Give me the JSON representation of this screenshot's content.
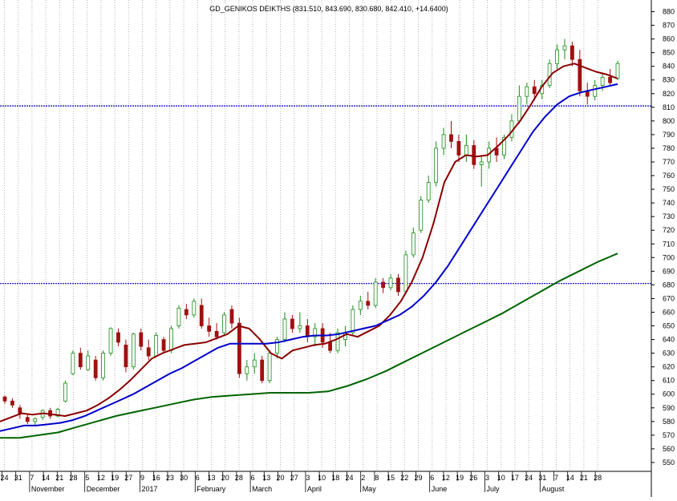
{
  "chart_data": {
    "type": "candlestick",
    "title": "GD_GENIKOS DEIKTHS (831.510, 843.690, 830.680, 842.410, +14.6400)",
    "ylim": [
      540,
      885
    ],
    "y_ticks": [
      550,
      560,
      570,
      580,
      590,
      600,
      610,
      620,
      630,
      640,
      650,
      660,
      670,
      680,
      690,
      700,
      710,
      720,
      730,
      740,
      750,
      760,
      770,
      780,
      790,
      800,
      810,
      820,
      830,
      840,
      850,
      860,
      870,
      880
    ],
    "y_tick_labels": [
      "550",
      "560",
      "570",
      "580",
      "590",
      "600",
      "610",
      "620",
      "630",
      "640",
      "650",
      "660",
      "670",
      "680",
      "690",
      "700",
      "710",
      "720",
      "730",
      "740",
      "750",
      "760",
      "770",
      "780",
      "790",
      "800",
      "810",
      "820",
      "830",
      "840",
      "850",
      "860",
      "870",
      "880"
    ],
    "x_tick_labels": [
      "24",
      "31",
      "7",
      "14",
      "21",
      "28",
      "5",
      "12",
      "19",
      "27",
      "9",
      "16",
      "23",
      "30",
      "6",
      "13",
      "20",
      "28",
      "6",
      "13",
      "20",
      "27",
      "3",
      "10",
      "18",
      "24",
      "2",
      "8",
      "15",
      "22",
      "29",
      "6",
      "12",
      "19",
      "26",
      "3",
      "10",
      "17",
      "24",
      "31",
      "7",
      "14",
      "21",
      "28"
    ],
    "month_labels": [
      "November",
      "December",
      "2017",
      "February",
      "March",
      "April",
      "May",
      "June",
      "July",
      "August"
    ],
    "month_tick_index": [
      2,
      6,
      10,
      14,
      18,
      22,
      26,
      31,
      35,
      39
    ],
    "horizontal_lines": [
      811,
      681
    ],
    "series": [
      {
        "role": "short-ma",
        "color": "#8b0000",
        "values": [
          580,
          583,
          586,
          585,
          586,
          585,
          584,
          586,
          588,
          592,
          597,
          603,
          610,
          618,
          626,
          630,
          633,
          636,
          637,
          638,
          641,
          644,
          650,
          648,
          640,
          630,
          626,
          632,
          634,
          636,
          637,
          640,
          644,
          642,
          646,
          650,
          658,
          668,
          682,
          700,
          725,
          755,
          770,
          775,
          774,
          775,
          782,
          790,
          800,
          812,
          825,
          835,
          840,
          842,
          839,
          836,
          834,
          831
        ]
      },
      {
        "role": "mid-ma",
        "color": "#0000cd",
        "values": [
          573,
          575,
          577,
          577,
          578,
          579,
          581,
          584,
          588,
          592,
          596,
          600,
          605,
          610,
          615,
          619,
          624,
          629,
          634,
          637,
          637,
          637,
          637,
          638,
          640,
          642,
          643,
          643,
          644,
          646,
          648,
          650,
          654,
          658,
          664,
          672,
          682,
          694,
          708,
          722,
          736,
          750,
          764,
          778,
          792,
          803,
          812,
          818,
          821,
          823,
          825,
          827
        ]
      },
      {
        "role": "long-ma",
        "color": "#006400",
        "values": [
          568,
          568,
          570,
          572,
          576,
          580,
          584,
          587,
          590,
          593,
          596,
          598,
          599,
          600,
          601,
          601,
          601,
          602,
          606,
          611,
          617,
          624,
          631,
          638,
          645,
          652,
          659,
          667,
          675,
          683,
          690,
          697,
          703
        ]
      }
    ],
    "ohlc": [
      [
        598,
        599,
        593,
        595
      ],
      [
        595,
        597,
        590,
        592
      ],
      [
        590,
        592,
        582,
        586
      ],
      [
        583,
        586,
        578,
        580
      ],
      [
        580,
        583,
        577,
        582
      ],
      [
        583,
        589,
        581,
        588
      ],
      [
        588,
        590,
        582,
        584
      ],
      [
        584,
        590,
        583,
        589
      ],
      [
        595,
        610,
        594,
        608
      ],
      [
        615,
        632,
        614,
        630
      ],
      [
        630,
        634,
        618,
        620
      ],
      [
        618,
        632,
        617,
        628
      ],
      [
        625,
        628,
        610,
        612
      ],
      [
        612,
        632,
        610,
        630
      ],
      [
        630,
        649,
        628,
        648
      ],
      [
        645,
        648,
        635,
        638
      ],
      [
        636,
        640,
        616,
        620
      ],
      [
        620,
        645,
        618,
        644
      ],
      [
        645,
        648,
        632,
        635
      ],
      [
        634,
        640,
        625,
        628
      ],
      [
        628,
        645,
        627,
        643
      ],
      [
        640,
        642,
        630,
        632
      ],
      [
        632,
        650,
        630,
        648
      ],
      [
        650,
        665,
        648,
        663
      ],
      [
        662,
        666,
        655,
        658
      ],
      [
        658,
        670,
        656,
        668
      ],
      [
        665,
        670,
        648,
        650
      ],
      [
        650,
        656,
        642,
        646
      ],
      [
        646,
        652,
        640,
        642
      ],
      [
        645,
        660,
        643,
        658
      ],
      [
        662,
        665,
        648,
        652
      ],
      [
        652,
        656,
        612,
        615
      ],
      [
        615,
        625,
        610,
        620
      ],
      [
        620,
        630,
        615,
        625
      ],
      [
        625,
        628,
        608,
        610
      ],
      [
        610,
        632,
        608,
        630
      ],
      [
        630,
        642,
        626,
        640
      ],
      [
        640,
        660,
        638,
        655
      ],
      [
        655,
        658,
        645,
        648
      ],
      [
        648,
        660,
        645,
        650
      ],
      [
        650,
        655,
        638,
        642
      ],
      [
        642,
        652,
        635,
        648
      ],
      [
        648,
        652,
        634,
        638
      ],
      [
        638,
        645,
        630,
        632
      ],
      [
        632,
        648,
        630,
        645
      ],
      [
        640,
        650,
        635,
        645
      ],
      [
        645,
        665,
        643,
        662
      ],
      [
        662,
        672,
        658,
        668
      ],
      [
        668,
        675,
        662,
        665
      ],
      [
        665,
        685,
        663,
        682
      ],
      [
        682,
        685,
        674,
        678
      ],
      [
        678,
        688,
        676,
        685
      ],
      [
        685,
        688,
        672,
        675
      ],
      [
        675,
        705,
        673,
        702
      ],
      [
        702,
        722,
        700,
        718
      ],
      [
        720,
        745,
        718,
        742
      ],
      [
        742,
        760,
        740,
        755
      ],
      [
        755,
        785,
        752,
        780
      ],
      [
        780,
        795,
        775,
        790
      ],
      [
        790,
        800,
        780,
        785
      ],
      [
        785,
        790,
        770,
        775
      ],
      [
        775,
        790,
        770,
        782
      ],
      [
        782,
        786,
        765,
        768
      ],
      [
        768,
        775,
        752,
        770
      ],
      [
        770,
        785,
        765,
        780
      ],
      [
        780,
        788,
        770,
        775
      ],
      [
        775,
        790,
        772,
        788
      ],
      [
        788,
        805,
        785,
        800
      ],
      [
        800,
        826,
        798,
        818
      ],
      [
        818,
        828,
        812,
        825
      ],
      [
        825,
        830,
        815,
        820
      ],
      [
        820,
        830,
        816,
        826
      ],
      [
        826,
        845,
        824,
        842
      ],
      [
        842,
        856,
        838,
        852
      ],
      [
        852,
        860,
        845,
        855
      ],
      [
        855,
        858,
        840,
        845
      ],
      [
        845,
        852,
        818,
        822
      ],
      [
        822,
        828,
        812,
        818
      ],
      [
        818,
        830,
        815,
        826
      ],
      [
        826,
        835,
        822,
        832
      ],
      [
        832,
        838,
        826,
        828
      ],
      [
        831,
        844,
        830,
        842
      ]
    ]
  }
}
